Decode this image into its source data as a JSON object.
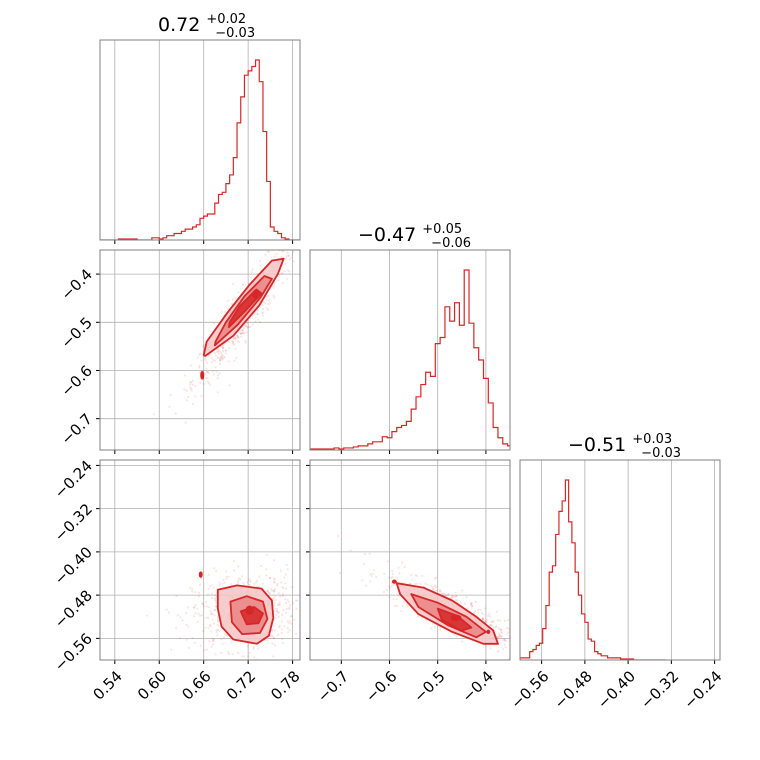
{
  "colors": {
    "line": "#d62728",
    "fill1": "#f4c6c6",
    "fill2": "#e88080",
    "fill3": "#d62728",
    "grid": "#b0b0b0",
    "axis": "#808080"
  },
  "titles": [
    {
      "main": "0.72",
      "sup": "+0.02",
      "sub": "−0.03"
    },
    {
      "main": "−0.47",
      "sup": "+0.05",
      "sub": "−0.06"
    },
    {
      "main": "−0.51",
      "sup": "+0.03",
      "sub": "−0.03"
    }
  ],
  "chart_data": {
    "type": "corner",
    "parameters": [
      {
        "range": [
          0.52,
          0.79
        ],
        "ticks": [
          0.54,
          0.6,
          0.66,
          0.72,
          0.78
        ],
        "tick_labels": [
          "0.54",
          "0.60",
          "0.66",
          "0.72",
          "0.78"
        ]
      },
      {
        "range": [
          -0.765,
          -0.35
        ],
        "ticks": [
          -0.7,
          -0.6,
          -0.5,
          -0.4
        ],
        "tick_labels": [
          "−0.7",
          "−0.6",
          "−0.5",
          "−0.4"
        ]
      },
      {
        "range": [
          -0.6,
          -0.23
        ],
        "ticks": [
          -0.56,
          -0.48,
          -0.4,
          -0.32,
          -0.24
        ],
        "tick_labels": [
          "−0.56",
          "−0.48",
          "−0.40",
          "−0.32",
          "−0.24"
        ]
      }
    ],
    "histograms": [
      {
        "edges": [
          0.52,
          0.525,
          0.53,
          0.535,
          0.54,
          0.545,
          0.55,
          0.555,
          0.56,
          0.565,
          0.57,
          0.575,
          0.58,
          0.585,
          0.59,
          0.595,
          0.6,
          0.605,
          0.61,
          0.615,
          0.62,
          0.625,
          0.63,
          0.635,
          0.64,
          0.645,
          0.65,
          0.655,
          0.66,
          0.665,
          0.67,
          0.675,
          0.68,
          0.685,
          0.69,
          0.695,
          0.7,
          0.705,
          0.71,
          0.715,
          0.72,
          0.725,
          0.73,
          0.735,
          0.74,
          0.745,
          0.75,
          0.755,
          0.76,
          0.765,
          0.77,
          0.775,
          0.78,
          0.785,
          0.79
        ],
        "counts": [
          0,
          0,
          0,
          0,
          0,
          1,
          1,
          1,
          1,
          1,
          0,
          0,
          0,
          0,
          2,
          2,
          1,
          2,
          4,
          4,
          6,
          6,
          8,
          10,
          10,
          12,
          14,
          20,
          22,
          24,
          24,
          34,
          42,
          44,
          52,
          60,
          76,
          108,
          132,
          152,
          156,
          160,
          166,
          146,
          100,
          54,
          12,
          8,
          6,
          2,
          1,
          0,
          0,
          0
        ]
      },
      {
        "edges": [
          -0.765,
          -0.755,
          -0.745,
          -0.735,
          -0.725,
          -0.715,
          -0.705,
          -0.695,
          -0.685,
          -0.675,
          -0.665,
          -0.655,
          -0.645,
          -0.635,
          -0.625,
          -0.615,
          -0.605,
          -0.595,
          -0.585,
          -0.575,
          -0.565,
          -0.555,
          -0.545,
          -0.535,
          -0.525,
          -0.515,
          -0.505,
          -0.495,
          -0.485,
          -0.475,
          -0.465,
          -0.455,
          -0.445,
          -0.435,
          -0.425,
          -0.415,
          -0.405,
          -0.395,
          -0.385,
          -0.375,
          -0.365,
          -0.355,
          -0.35
        ],
        "counts": [
          1,
          1,
          1,
          1,
          1,
          2,
          1,
          2,
          2,
          3,
          4,
          4,
          6,
          8,
          8,
          13,
          12,
          18,
          22,
          24,
          28,
          40,
          52,
          64,
          76,
          72,
          104,
          110,
          140,
          126,
          144,
          122,
          176,
          124,
          100,
          88,
          70,
          46,
          22,
          12,
          6,
          4
        ]
      },
      {
        "edges": [
          -0.6,
          -0.594,
          -0.588,
          -0.582,
          -0.576,
          -0.57,
          -0.564,
          -0.558,
          -0.552,
          -0.546,
          -0.54,
          -0.534,
          -0.528,
          -0.522,
          -0.516,
          -0.51,
          -0.504,
          -0.498,
          -0.492,
          -0.486,
          -0.48,
          -0.474,
          -0.468,
          -0.462,
          -0.456,
          -0.45,
          -0.444,
          -0.438,
          -0.432,
          -0.426,
          -0.42,
          -0.414,
          -0.408,
          -0.402,
          -0.396,
          -0.39,
          -0.384,
          -0.378,
          -0.372,
          -0.366,
          -0.36,
          -0.354,
          -0.348,
          -0.342,
          -0.336,
          -0.33
        ],
        "counts": [
          2,
          2,
          2,
          8,
          10,
          14,
          16,
          30,
          52,
          84,
          90,
          120,
          142,
          152,
          172,
          132,
          112,
          84,
          62,
          44,
          36,
          20,
          18,
          8,
          6,
          4,
          4,
          2,
          2,
          2,
          2,
          1,
          1,
          1,
          1,
          0,
          0,
          0,
          0,
          0,
          0,
          0,
          0,
          0,
          0
        ]
      }
    ],
    "pairs": [
      {
        "x": 0,
        "y": 1,
        "corr": 0.93,
        "contours": [
          {
            "level": 1,
            "points": [
              [
                0.662,
                -0.57
              ],
              [
                0.7,
                -0.528
              ],
              [
                0.735,
                -0.465
              ],
              [
                0.76,
                -0.4
              ],
              [
                0.768,
                -0.368
              ],
              [
                0.752,
                -0.372
              ],
              [
                0.722,
                -0.422
              ],
              [
                0.692,
                -0.48
              ],
              [
                0.664,
                -0.54
              ],
              [
                0.66,
                -0.568
              ]
            ]
          },
          {
            "level": 2,
            "points": [
              [
                0.675,
                -0.548
              ],
              [
                0.706,
                -0.505
              ],
              [
                0.737,
                -0.448
              ],
              [
                0.752,
                -0.41
              ],
              [
                0.742,
                -0.404
              ],
              [
                0.715,
                -0.446
              ],
              [
                0.69,
                -0.5
              ],
              [
                0.676,
                -0.54
              ]
            ]
          },
          {
            "level": 3,
            "points": [
              [
                0.694,
                -0.51
              ],
              [
                0.715,
                -0.478
              ],
              [
                0.738,
                -0.44
              ],
              [
                0.731,
                -0.432
              ],
              [
                0.709,
                -0.466
              ],
              [
                0.695,
                -0.5
              ]
            ]
          }
        ],
        "blobs": [
          {
            "center": [
              0.658,
              -0.61
            ],
            "rx": 0.002,
            "ry": 0.008,
            "level": 3
          },
          {
            "center": [
              0.73,
              -0.442
            ],
            "rx": 0.004,
            "ry": 0.008,
            "level": 3
          }
        ],
        "scatter": {
          "center": [
            0.715,
            -0.48
          ],
          "sx": 0.035,
          "sy": 0.075,
          "count": 650
        }
      },
      {
        "x": 0,
        "y": 2,
        "corr": 0.1,
        "contours": [
          {
            "level": 1,
            "points": [
              [
                0.679,
                -0.47
              ],
              [
                0.705,
                -0.462
              ],
              [
                0.738,
                -0.468
              ],
              [
                0.752,
                -0.49
              ],
              [
                0.754,
                -0.522
              ],
              [
                0.748,
                -0.555
              ],
              [
                0.732,
                -0.57
              ],
              [
                0.7,
                -0.562
              ],
              [
                0.684,
                -0.538
              ],
              [
                0.679,
                -0.505
              ]
            ]
          },
          {
            "level": 2,
            "points": [
              [
                0.696,
                -0.492
              ],
              [
                0.718,
                -0.482
              ],
              [
                0.74,
                -0.492
              ],
              [
                0.746,
                -0.524
              ],
              [
                0.736,
                -0.55
              ],
              [
                0.712,
                -0.552
              ],
              [
                0.698,
                -0.53
              ]
            ]
          },
          {
            "level": 3,
            "points": [
              [
                0.71,
                -0.51
              ],
              [
                0.728,
                -0.502
              ],
              [
                0.74,
                -0.514
              ],
              [
                0.734,
                -0.532
              ],
              [
                0.718,
                -0.534
              ]
            ]
          }
        ],
        "blobs": [
          {
            "center": [
              0.656,
              -0.442
            ],
            "rx": 0.002,
            "ry": 0.005,
            "level": 3
          },
          {
            "center": [
              0.722,
              -0.508
            ],
            "rx": 0.005,
            "ry": 0.008,
            "level": 3
          }
        ],
        "scatter": {
          "center": [
            0.715,
            -0.51
          ],
          "sx": 0.035,
          "sy": 0.035,
          "count": 650
        }
      },
      {
        "x": 1,
        "y": 2,
        "corr": -0.85,
        "contours": [
          {
            "level": 1,
            "points": [
              [
                -0.585,
                -0.458
              ],
              [
                -0.53,
                -0.466
              ],
              [
                -0.47,
                -0.49
              ],
              [
                -0.42,
                -0.52
              ],
              [
                -0.385,
                -0.545
              ],
              [
                -0.375,
                -0.57
              ],
              [
                -0.405,
                -0.57
              ],
              [
                -0.47,
                -0.548
              ],
              [
                -0.54,
                -0.515
              ],
              [
                -0.578,
                -0.478
              ]
            ]
          },
          {
            "level": 2,
            "points": [
              [
                -0.555,
                -0.478
              ],
              [
                -0.5,
                -0.494
              ],
              [
                -0.44,
                -0.52
              ],
              [
                -0.4,
                -0.548
              ],
              [
                -0.42,
                -0.558
              ],
              [
                -0.48,
                -0.535
              ],
              [
                -0.54,
                -0.502
              ]
            ]
          },
          {
            "level": 3,
            "points": [
              [
                -0.5,
                -0.505
              ],
              [
                -0.46,
                -0.518
              ],
              [
                -0.43,
                -0.54
              ],
              [
                -0.452,
                -0.546
              ],
              [
                -0.492,
                -0.525
              ]
            ]
          }
        ],
        "blobs": [
          {
            "center": [
              -0.59,
              -0.455
            ],
            "rx": 0.004,
            "ry": 0.003,
            "level": 3
          },
          {
            "center": [
              -0.462,
              -0.522
            ],
            "rx": 0.01,
            "ry": 0.005,
            "level": 3
          },
          {
            "center": [
              -0.395,
              -0.548
            ],
            "rx": 0.003,
            "ry": 0.003,
            "level": 3
          }
        ],
        "scatter": {
          "center": [
            -0.47,
            -0.51
          ],
          "sx": 0.07,
          "sy": 0.035,
          "count": 650
        }
      }
    ]
  }
}
